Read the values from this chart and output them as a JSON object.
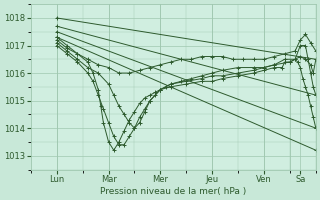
{
  "xlabel": "Pression niveau de la mer( hPa )",
  "bg_color": "#c8e8d8",
  "plot_bg_color": "#d0eee0",
  "line_color": "#2d5a2d",
  "marker": "+",
  "markersize": 3,
  "linewidth": 0.7,
  "ylim": [
    1012.5,
    1018.5
  ],
  "yticks": [
    1013,
    1014,
    1015,
    1016,
    1017,
    1018
  ],
  "xlim": [
    0,
    5.5
  ],
  "day_positions": [
    0.5,
    1.5,
    2.5,
    3.5,
    4.5,
    5.2
  ],
  "day_labels": [
    "Lun",
    "Mar",
    "Mer",
    "Jeu",
    "Ven",
    "Sa"
  ],
  "major_vlines": [
    0.5,
    1.5,
    2.5,
    3.5,
    4.5,
    5.0,
    5.5
  ],
  "grid_color": "#a0c8b0",
  "lines": [
    {
      "x": [
        0.5,
        5.5
      ],
      "y": [
        1018.0,
        1016.5
      ]
    },
    {
      "x": [
        0.5,
        5.5
      ],
      "y": [
        1017.7,
        1015.2
      ]
    },
    {
      "x": [
        0.5,
        5.5
      ],
      "y": [
        1017.5,
        1014.0
      ]
    },
    {
      "x": [
        0.5,
        5.5
      ],
      "y": [
        1017.3,
        1013.2
      ]
    },
    {
      "x": [
        0.5,
        0.7,
        0.9,
        1.1,
        1.3,
        1.5,
        1.7,
        1.9,
        2.1,
        2.3,
        2.5,
        2.7,
        2.9,
        3.1,
        3.3,
        3.5,
        3.7,
        3.9,
        4.1,
        4.3,
        4.5,
        4.7,
        4.9,
        5.1,
        5.2,
        5.3,
        5.4,
        5.5
      ],
      "y": [
        1017.2,
        1016.9,
        1016.7,
        1016.5,
        1016.3,
        1016.2,
        1016.0,
        1016.0,
        1016.1,
        1016.2,
        1016.3,
        1016.4,
        1016.5,
        1016.5,
        1016.6,
        1016.6,
        1016.6,
        1016.5,
        1016.5,
        1016.5,
        1016.5,
        1016.6,
        1016.7,
        1016.8,
        1017.2,
        1017.4,
        1017.1,
        1016.8
      ]
    },
    {
      "x": [
        0.5,
        0.7,
        0.9,
        1.1,
        1.3,
        1.5,
        1.6,
        1.7,
        1.8,
        1.9,
        2.0,
        2.1,
        2.2,
        2.3,
        2.5,
        2.7,
        2.9,
        3.1,
        3.3,
        3.5,
        3.7,
        4.0,
        4.3,
        4.5,
        4.7,
        5.0,
        5.2,
        5.3,
        5.4,
        5.45,
        5.5
      ],
      "y": [
        1017.1,
        1016.8,
        1016.5,
        1016.2,
        1016.0,
        1015.6,
        1015.2,
        1014.8,
        1014.5,
        1014.2,
        1014.0,
        1014.2,
        1014.6,
        1015.0,
        1015.4,
        1015.6,
        1015.7,
        1015.8,
        1015.9,
        1016.0,
        1016.1,
        1016.2,
        1016.2,
        1016.2,
        1016.3,
        1016.4,
        1016.6,
        1016.5,
        1016.3,
        1016.0,
        1016.5
      ]
    },
    {
      "x": [
        0.5,
        0.7,
        0.9,
        1.1,
        1.2,
        1.3,
        1.4,
        1.5,
        1.6,
        1.7,
        1.8,
        1.9,
        2.0,
        2.1,
        2.2,
        2.3,
        2.4,
        2.5,
        2.6,
        2.7,
        3.0,
        3.3,
        3.5,
        3.7,
        4.0,
        4.3,
        4.5,
        4.7,
        4.9,
        5.1,
        5.2,
        5.3,
        5.35,
        5.4,
        5.45,
        5.5
      ],
      "y": [
        1017.0,
        1016.7,
        1016.4,
        1016.0,
        1015.7,
        1015.2,
        1014.7,
        1014.2,
        1013.7,
        1013.4,
        1013.4,
        1013.7,
        1014.0,
        1014.4,
        1014.7,
        1015.0,
        1015.2,
        1015.4,
        1015.5,
        1015.6,
        1015.7,
        1015.8,
        1015.9,
        1015.9,
        1016.0,
        1016.1,
        1016.2,
        1016.3,
        1016.5,
        1016.5,
        1017.0,
        1017.0,
        1016.5,
        1016.0,
        1015.5,
        1015.2
      ]
    },
    {
      "x": [
        0.5,
        0.7,
        0.9,
        1.1,
        1.2,
        1.3,
        1.35,
        1.4,
        1.5,
        1.6,
        1.7,
        1.8,
        1.9,
        2.0,
        2.1,
        2.2,
        2.3,
        2.4,
        2.5,
        2.7,
        3.0,
        3.3,
        3.5,
        3.7,
        4.0,
        4.3,
        4.5,
        4.7,
        4.85,
        4.9,
        5.0,
        5.1,
        5.15,
        5.2,
        5.25,
        5.3,
        5.35,
        5.4,
        5.45,
        5.5
      ],
      "y": [
        1017.3,
        1017.0,
        1016.7,
        1016.4,
        1016.0,
        1015.4,
        1014.8,
        1014.2,
        1013.5,
        1013.2,
        1013.5,
        1013.9,
        1014.3,
        1014.6,
        1014.9,
        1015.1,
        1015.2,
        1015.3,
        1015.4,
        1015.5,
        1015.6,
        1015.7,
        1015.7,
        1015.8,
        1015.9,
        1016.0,
        1016.1,
        1016.2,
        1016.2,
        1016.4,
        1016.4,
        1016.5,
        1016.4,
        1016.2,
        1015.8,
        1015.5,
        1015.2,
        1014.8,
        1014.4,
        1014.0
      ]
    }
  ]
}
